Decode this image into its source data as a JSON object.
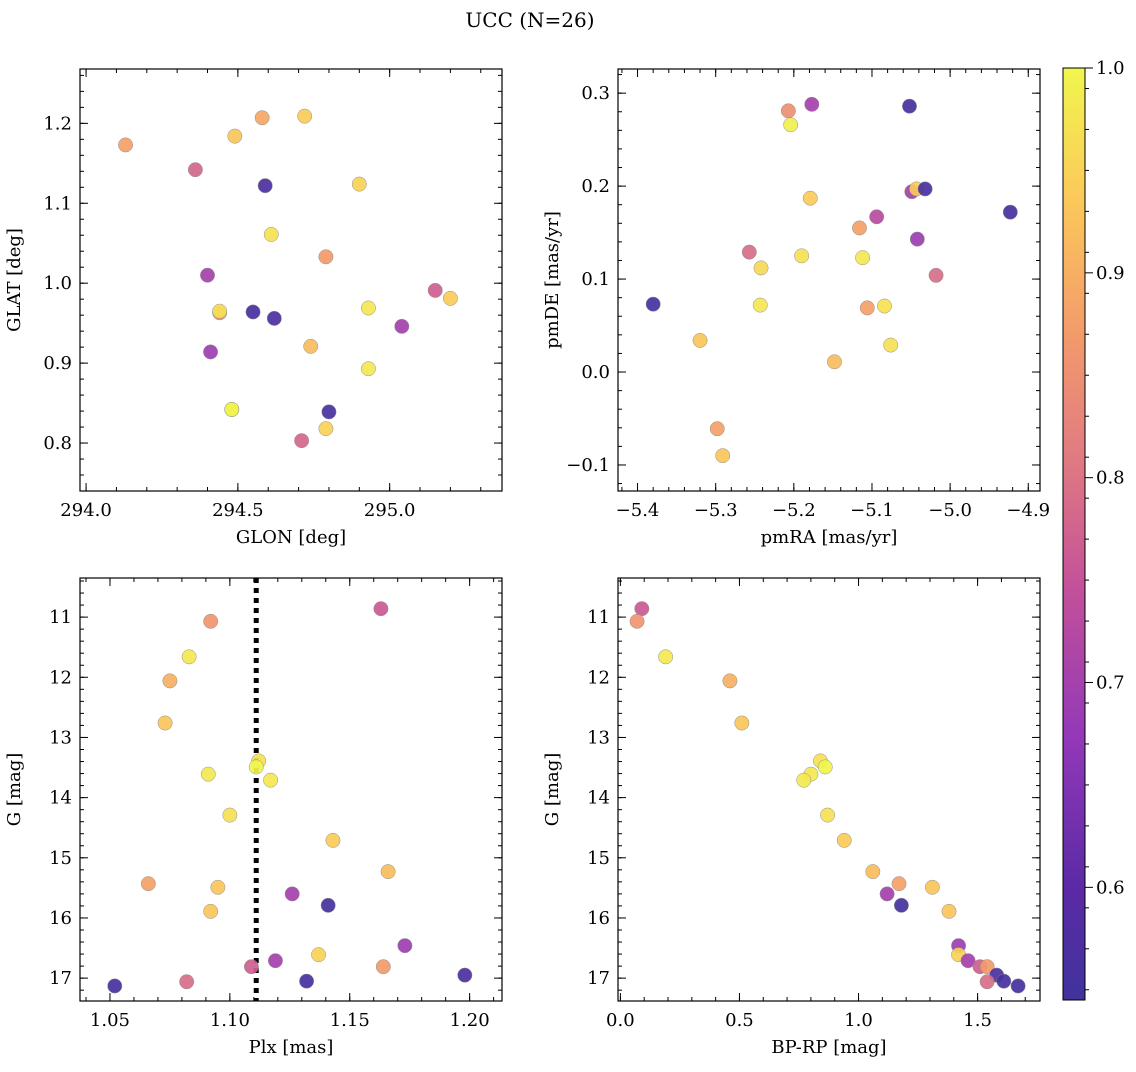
{
  "figure": {
    "title": "UCC (N=26)"
  },
  "colorbar": {
    "min": 0.545,
    "max": 1.0,
    "ticks": [
      0.6,
      0.7,
      0.8,
      0.9,
      1.0
    ],
    "tick_labels": [
      "0.6",
      "0.7",
      "0.8",
      "0.9",
      "1.0"
    ],
    "colormap": "plasma"
  },
  "chart_data": [
    {
      "type": "scatter",
      "xlabel": "GLON [deg]",
      "ylabel": "GLAT [deg]",
      "xlim": [
        293.98,
        295.37
      ],
      "ylim": [
        0.74,
        1.268
      ],
      "xticks": [
        294.0,
        294.5,
        295.0
      ],
      "xtick_labels": [
        "294.0",
        "294.5",
        "295.0"
      ],
      "yticks": [
        0.8,
        0.9,
        1.0,
        1.1,
        1.2
      ],
      "ytick_labels": [
        "0.8",
        "0.9",
        "1.0",
        "1.1",
        "1.2"
      ],
      "x_minor_step": 0.1,
      "y_minor_step": 0.02,
      "y_inverted": false,
      "points": [
        {
          "x": 294.13,
          "y": 1.173,
          "c": 0.88
        },
        {
          "x": 294.36,
          "y": 1.142,
          "c": 0.78
        },
        {
          "x": 294.49,
          "y": 1.184,
          "c": 0.93
        },
        {
          "x": 294.58,
          "y": 1.207,
          "c": 0.89
        },
        {
          "x": 294.72,
          "y": 1.209,
          "c": 0.94
        },
        {
          "x": 294.59,
          "y": 1.122,
          "c": 0.57
        },
        {
          "x": 294.9,
          "y": 1.124,
          "c": 0.95
        },
        {
          "x": 294.61,
          "y": 1.061,
          "c": 0.97
        },
        {
          "x": 294.79,
          "y": 1.033,
          "c": 0.87
        },
        {
          "x": 294.4,
          "y": 1.01,
          "c": 0.7
        },
        {
          "x": 295.15,
          "y": 0.991,
          "c": 0.77
        },
        {
          "x": 295.2,
          "y": 0.981,
          "c": 0.94
        },
        {
          "x": 294.44,
          "y": 0.963,
          "c": 0.86
        },
        {
          "x": 294.44,
          "y": 0.965,
          "c": 0.97
        },
        {
          "x": 294.55,
          "y": 0.964,
          "c": 0.56
        },
        {
          "x": 294.62,
          "y": 0.956,
          "c": 0.57
        },
        {
          "x": 294.93,
          "y": 0.969,
          "c": 0.98
        },
        {
          "x": 295.04,
          "y": 0.946,
          "c": 0.7
        },
        {
          "x": 294.74,
          "y": 0.921,
          "c": 0.92
        },
        {
          "x": 294.41,
          "y": 0.914,
          "c": 0.69
        },
        {
          "x": 294.93,
          "y": 0.893,
          "c": 0.98
        },
        {
          "x": 294.48,
          "y": 0.842,
          "c": 0.96
        },
        {
          "x": 294.48,
          "y": 0.842,
          "c": 1.0
        },
        {
          "x": 294.8,
          "y": 0.839,
          "c": 0.56
        },
        {
          "x": 294.79,
          "y": 0.818,
          "c": 0.95
        },
        {
          "x": 294.71,
          "y": 0.803,
          "c": 0.78
        }
      ]
    },
    {
      "type": "scatter",
      "xlabel": "pmRA [mas/yr]",
      "ylabel": "pmDE [mas/yr]",
      "xlim": [
        -5.425,
        -4.885
      ],
      "ylim": [
        -0.128,
        0.326
      ],
      "xticks": [
        -5.4,
        -5.3,
        -5.2,
        -5.1,
        -5.0,
        -4.9
      ],
      "xtick_labels": [
        "−5.4",
        "−5.3",
        "−5.2",
        "−5.1",
        "−5.0",
        "−4.9"
      ],
      "yticks": [
        -0.1,
        0.0,
        0.1,
        0.2,
        0.3
      ],
      "ytick_labels": [
        "−0.1",
        "0.0",
        "0.1",
        "0.2",
        "0.3"
      ],
      "x_minor_step": 0.02,
      "y_minor_step": 0.02,
      "y_inverted": false,
      "points": [
        {
          "x": -5.207,
          "y": 0.281,
          "c": 0.85
        },
        {
          "x": -5.177,
          "y": 0.288,
          "c": 0.7
        },
        {
          "x": -5.204,
          "y": 0.266,
          "c": 0.99
        },
        {
          "x": -5.052,
          "y": 0.286,
          "c": 0.56
        },
        {
          "x": -5.049,
          "y": 0.194,
          "c": 0.7
        },
        {
          "x": -5.043,
          "y": 0.197,
          "c": 0.94
        },
        {
          "x": -5.032,
          "y": 0.197,
          "c": 0.57
        },
        {
          "x": -4.923,
          "y": 0.172,
          "c": 0.56
        },
        {
          "x": -5.179,
          "y": 0.187,
          "c": 0.94
        },
        {
          "x": -5.094,
          "y": 0.167,
          "c": 0.73
        },
        {
          "x": -5.116,
          "y": 0.155,
          "c": 0.88
        },
        {
          "x": -5.042,
          "y": 0.143,
          "c": 0.69
        },
        {
          "x": -5.257,
          "y": 0.129,
          "c": 0.79
        },
        {
          "x": -5.19,
          "y": 0.125,
          "c": 0.97
        },
        {
          "x": -5.112,
          "y": 0.123,
          "c": 0.98
        },
        {
          "x": -5.242,
          "y": 0.112,
          "c": 0.96
        },
        {
          "x": -5.018,
          "y": 0.104,
          "c": 0.79
        },
        {
          "x": -5.38,
          "y": 0.073,
          "c": 0.56
        },
        {
          "x": -5.243,
          "y": 0.072,
          "c": 0.98
        },
        {
          "x": -5.106,
          "y": 0.069,
          "c": 0.88
        },
        {
          "x": -5.084,
          "y": 0.071,
          "c": 0.97
        },
        {
          "x": -5.32,
          "y": 0.034,
          "c": 0.93
        },
        {
          "x": -5.076,
          "y": 0.029,
          "c": 0.97
        },
        {
          "x": -5.148,
          "y": 0.011,
          "c": 0.92
        },
        {
          "x": -5.298,
          "y": -0.061,
          "c": 0.88
        },
        {
          "x": -5.291,
          "y": -0.09,
          "c": 0.93
        }
      ]
    },
    {
      "type": "scatter",
      "xlabel": "Plx [mas]",
      "ylabel": "G [mag]",
      "xlim": [
        1.0375,
        1.2135
      ],
      "ylim": [
        10.35,
        17.38
      ],
      "xticks": [
        1.05,
        1.1,
        1.15,
        1.2
      ],
      "xtick_labels": [
        "1.05",
        "1.10",
        "1.15",
        "1.20"
      ],
      "yticks": [
        11,
        12,
        13,
        14,
        15,
        16,
        17
      ],
      "ytick_labels": [
        "11",
        "12",
        "13",
        "14",
        "15",
        "16",
        "17"
      ],
      "x_minor_step": 0.01,
      "y_minor_step": 0.2,
      "y_inverted": true,
      "vline": 1.111,
      "points": [
        {
          "x": 1.163,
          "y": 10.86,
          "c": 0.76
        },
        {
          "x": 1.092,
          "y": 11.07,
          "c": 0.86
        },
        {
          "x": 1.083,
          "y": 11.66,
          "c": 0.98
        },
        {
          "x": 1.075,
          "y": 12.06,
          "c": 0.9
        },
        {
          "x": 1.073,
          "y": 12.76,
          "c": 0.93
        },
        {
          "x": 1.112,
          "y": 13.39,
          "c": 0.97
        },
        {
          "x": 1.111,
          "y": 13.49,
          "c": 1.0
        },
        {
          "x": 1.091,
          "y": 13.61,
          "c": 0.98
        },
        {
          "x": 1.117,
          "y": 13.71,
          "c": 0.98
        },
        {
          "x": 1.1,
          "y": 14.29,
          "c": 0.97
        },
        {
          "x": 1.143,
          "y": 14.71,
          "c": 0.94
        },
        {
          "x": 1.166,
          "y": 15.23,
          "c": 0.92
        },
        {
          "x": 1.066,
          "y": 15.43,
          "c": 0.88
        },
        {
          "x": 1.095,
          "y": 15.49,
          "c": 0.93
        },
        {
          "x": 1.126,
          "y": 15.6,
          "c": 0.7
        },
        {
          "x": 1.141,
          "y": 15.79,
          "c": 0.56
        },
        {
          "x": 1.092,
          "y": 15.89,
          "c": 0.93
        },
        {
          "x": 1.173,
          "y": 16.46,
          "c": 0.69
        },
        {
          "x": 1.137,
          "y": 16.61,
          "c": 0.95
        },
        {
          "x": 1.119,
          "y": 16.71,
          "c": 0.7
        },
        {
          "x": 1.109,
          "y": 16.81,
          "c": 0.77
        },
        {
          "x": 1.164,
          "y": 16.81,
          "c": 0.87
        },
        {
          "x": 1.198,
          "y": 16.95,
          "c": 0.57
        },
        {
          "x": 1.132,
          "y": 17.05,
          "c": 0.56
        },
        {
          "x": 1.082,
          "y": 17.06,
          "c": 0.79
        },
        {
          "x": 1.052,
          "y": 17.13,
          "c": 0.56
        }
      ]
    },
    {
      "type": "scatter",
      "xlabel": "BP-RP [mag]",
      "ylabel": "G [mag]",
      "xlim": [
        -0.01,
        1.762
      ],
      "ylim": [
        10.35,
        17.38
      ],
      "xticks": [
        0.0,
        0.5,
        1.0,
        1.5
      ],
      "xtick_labels": [
        "0.0",
        "0.5",
        "1.0",
        "1.5"
      ],
      "yticks": [
        11,
        12,
        13,
        14,
        15,
        16,
        17
      ],
      "ytick_labels": [
        "11",
        "12",
        "13",
        "14",
        "15",
        "16",
        "17"
      ],
      "x_minor_step": 0.1,
      "y_minor_step": 0.2,
      "y_inverted": true,
      "points": [
        {
          "x": 0.09,
          "y": 10.86,
          "c": 0.76
        },
        {
          "x": 0.07,
          "y": 11.07,
          "c": 0.86
        },
        {
          "x": 0.19,
          "y": 11.66,
          "c": 0.98
        },
        {
          "x": 0.46,
          "y": 12.06,
          "c": 0.9
        },
        {
          "x": 0.51,
          "y": 12.76,
          "c": 0.93
        },
        {
          "x": 0.84,
          "y": 13.39,
          "c": 0.97
        },
        {
          "x": 0.86,
          "y": 13.49,
          "c": 1.0
        },
        {
          "x": 0.8,
          "y": 13.61,
          "c": 0.98
        },
        {
          "x": 0.77,
          "y": 13.71,
          "c": 0.98
        },
        {
          "x": 0.87,
          "y": 14.29,
          "c": 0.97
        },
        {
          "x": 0.94,
          "y": 14.71,
          "c": 0.94
        },
        {
          "x": 1.06,
          "y": 15.23,
          "c": 0.92
        },
        {
          "x": 1.17,
          "y": 15.43,
          "c": 0.88
        },
        {
          "x": 1.31,
          "y": 15.49,
          "c": 0.93
        },
        {
          "x": 1.12,
          "y": 15.6,
          "c": 0.7
        },
        {
          "x": 1.18,
          "y": 15.79,
          "c": 0.56
        },
        {
          "x": 1.38,
          "y": 15.89,
          "c": 0.93
        },
        {
          "x": 1.42,
          "y": 16.46,
          "c": 0.69
        },
        {
          "x": 1.42,
          "y": 16.61,
          "c": 0.95
        },
        {
          "x": 1.46,
          "y": 16.71,
          "c": 0.7
        },
        {
          "x": 1.51,
          "y": 16.81,
          "c": 0.77
        },
        {
          "x": 1.54,
          "y": 16.81,
          "c": 0.87
        },
        {
          "x": 1.58,
          "y": 16.95,
          "c": 0.57
        },
        {
          "x": 1.61,
          "y": 17.05,
          "c": 0.56
        },
        {
          "x": 1.54,
          "y": 17.06,
          "c": 0.79
        },
        {
          "x": 1.67,
          "y": 17.13,
          "c": 0.56
        }
      ]
    }
  ]
}
